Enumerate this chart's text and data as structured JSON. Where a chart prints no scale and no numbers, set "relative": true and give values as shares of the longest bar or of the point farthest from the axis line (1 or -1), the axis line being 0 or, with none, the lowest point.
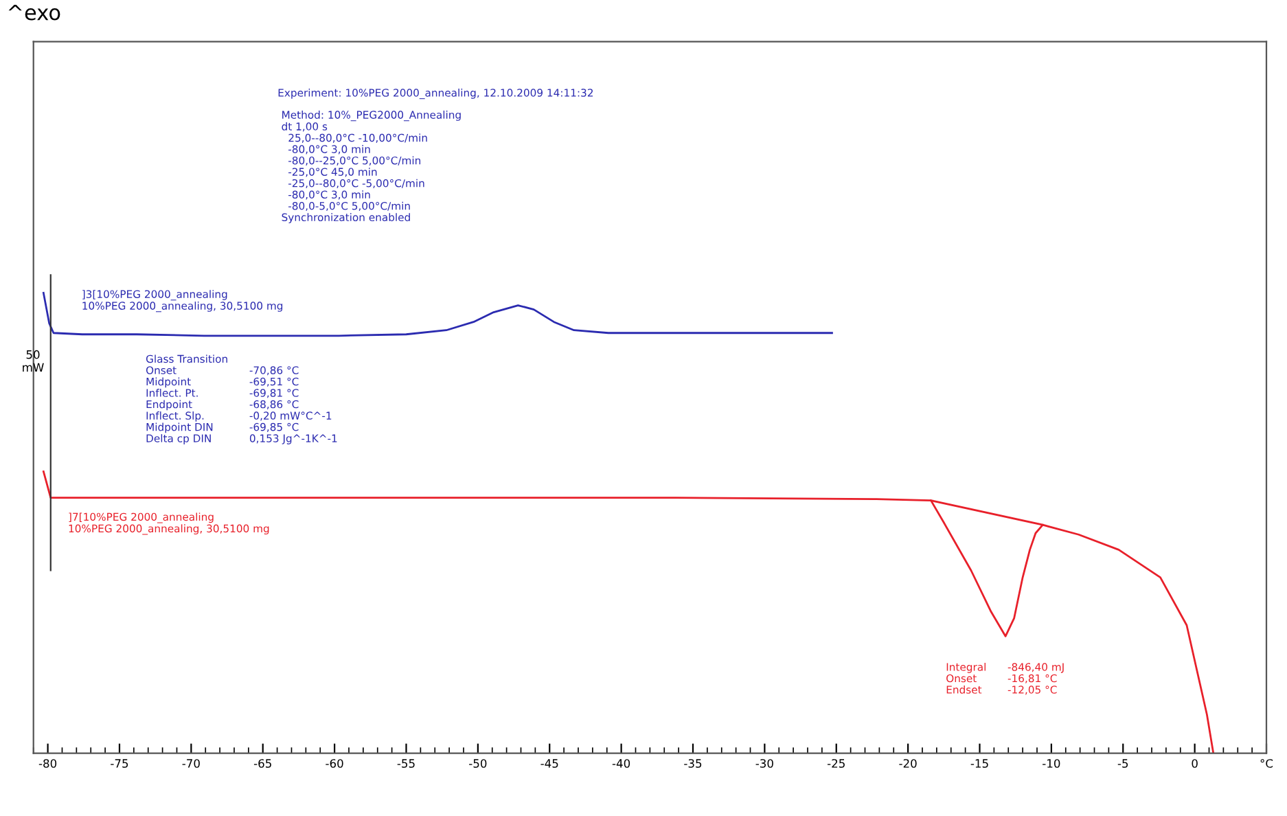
{
  "chart_data": {
    "type": "line",
    "title": "^exo",
    "relative": true,
    "ref_lines": [
      {
        "axis": "x",
        "value": -79.8,
        "label": "50\nmW",
        "color": "#333333"
      }
    ],
    "xlim": [
      -81,
      5
    ],
    "xticks": [
      -80,
      -75,
      -70,
      -65,
      -60,
      -55,
      -50,
      -45,
      -40,
      -35,
      -30,
      -25,
      -20,
      -15,
      -10,
      -5,
      0,
      {
        "value": 5,
        "label": "°C"
      }
    ],
    "series": [
      {
        "color": "#2b2bb0",
        "x": [
          -80.3,
          -79.9,
          -79.6,
          -77.6,
          -73.8,
          -69.1,
          -64.4,
          -59.7,
          -55.0,
          -52.2,
          -50.3,
          -48.9,
          -47.2,
          -46.1,
          -44.7,
          -43.3,
          -40.9,
          -36.2,
          -30.6,
          -25.3
        ],
        "values": [
          1.0,
          0.934,
          0.913,
          0.91,
          0.91,
          0.907,
          0.907,
          0.907,
          0.91,
          0.919,
          0.937,
          0.958,
          0.973,
          0.964,
          0.937,
          0.919,
          0.913,
          0.913,
          0.913,
          0.913
        ]
      },
      {
        "color": "#e8202a",
        "x": [
          -80.3,
          -79.8,
          -73.8,
          -55.0,
          -36.2,
          -22.2,
          -18.4,
          -17.5,
          -15.6,
          -14.2,
          -13.2,
          -12.6,
          -12.0,
          -11.5,
          -11.1,
          -10.6,
          -8.1,
          -5.3,
          -2.4,
          -0.56,
          0.85,
          1.3
        ],
        "values": [
          0.612,
          0.555,
          0.555,
          0.555,
          0.555,
          0.552,
          0.549,
          0.501,
          0.397,
          0.307,
          0.254,
          0.293,
          0.382,
          0.442,
          0.478,
          0.496,
          0.475,
          0.442,
          0.382,
          0.278,
          0.084,
          0.0
        ]
      },
      {
        "color": "#e8202a",
        "x": [
          -18.4,
          -10.6
        ],
        "values": [
          0.549,
          0.496
        ]
      }
    ],
    "annotations": [
      "Experiment: 10%PEG 2000_annealing, 12.10.2009 14:11:32",
      "Method: 10%_PEG2000_Annealing\ndt 1,00 s\n  25,0--80,0°C -10,00°C/min\n  -80,0°C 3,0 min\n  -80,0--25,0°C 5,00°C/min\n  -25,0°C 45,0 min\n  -25,0--80,0°C -5,00°C/min\n  -80,0°C 3,0 min\n  -80,0-5,0°C 5,00°C/min\nSynchronization enabled",
      "]3[10%PEG 2000_annealing\n10%PEG 2000_annealing, 30,5100 mg",
      "Glass Transition\nOnset\nMidpoint\nInflect. Pt.\nEndpoint\nInflect. Slp.\nMidpoint DIN\nDelta cp DIN",
      "\n-70,86 °C\n-69,51 °C\n-69,81 °C\n-68,86 °C\n-0,20 mW°C^-1\n-69,85 °C\n0,153 Jg^-1K^-1",
      "]7[10%PEG 2000_annealing\n10%PEG 2000_annealing, 30,5100 mg",
      "Integral\nOnset\nEndset",
      "-846,40 mJ\n-16,81 °C\n-12,05 °C"
    ]
  }
}
